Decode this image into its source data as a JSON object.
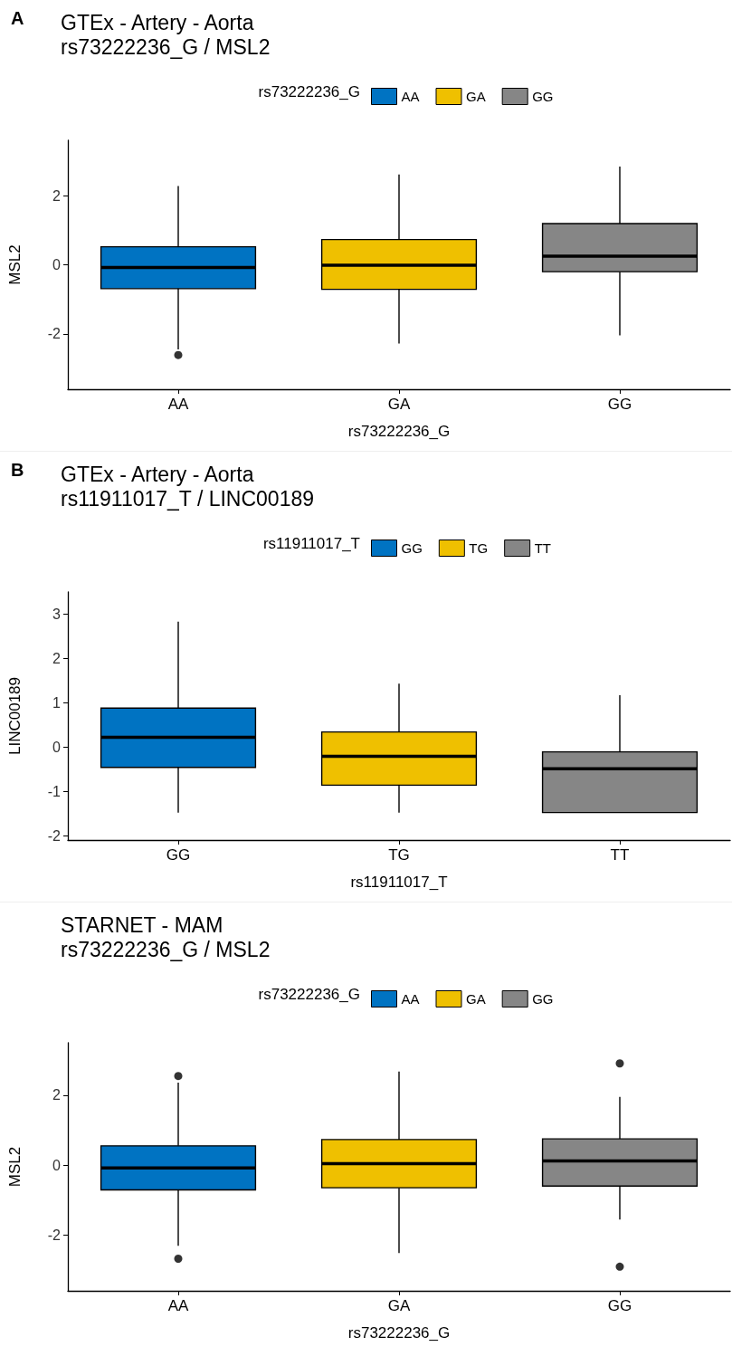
{
  "chart_data": [
    {
      "type": "box",
      "title": "GTEx - Artery - Aorta",
      "subtitle": "rs73222236_G / MSL2",
      "annotations": [
        "A"
      ],
      "xlabel": "rs73222236_G",
      "ylabel": "MSL2",
      "legend_title": "rs73222236_G",
      "legend": "top",
      "categories": [
        "AA",
        "GA",
        "GG"
      ],
      "ylim": [
        -3.6,
        3.6
      ],
      "yticks": [
        -2,
        0,
        2
      ],
      "series": [
        {
          "name": "AA",
          "color": "#0073c2",
          "boxes": [
            {
              "low": -2.45,
              "q1": -0.69,
              "median": -0.08,
              "q3": 0.52,
              "high": 2.28,
              "outliers": [
                -2.61
              ]
            },
            null,
            null
          ]
        },
        {
          "name": "GA",
          "color": "#efc000",
          "boxes": [
            null,
            {
              "low": -2.28,
              "q1": -0.71,
              "median": -0.01,
              "q3": 0.73,
              "high": 2.61
            },
            null
          ]
        },
        {
          "name": "GG",
          "color": "#868686",
          "boxes": [
            null,
            null,
            {
              "low": -2.04,
              "q1": -0.2,
              "median": 0.25,
              "q3": 1.19,
              "high": 2.84
            }
          ]
        }
      ]
    },
    {
      "type": "box",
      "title": "GTEx - Artery - Aorta",
      "subtitle": "rs11911017_T / LINC00189",
      "annotations": [
        "B"
      ],
      "xlabel": "rs11911017_T",
      "ylabel": "LINC00189",
      "legend_title": "rs11911017_T",
      "legend": "top",
      "categories": [
        "GG",
        "TG",
        "TT"
      ],
      "ylim": [
        -2.1,
        3.5
      ],
      "yticks": [
        -2,
        -1,
        0,
        1,
        2,
        3
      ],
      "series": [
        {
          "name": "GG",
          "color": "#0073c2",
          "boxes": [
            {
              "low": -1.48,
              "q1": -0.46,
              "median": 0.22,
              "q3": 0.88,
              "high": 2.83
            },
            null,
            null
          ]
        },
        {
          "name": "TG",
          "color": "#efc000",
          "boxes": [
            null,
            {
              "low": -1.48,
              "q1": -0.86,
              "median": -0.21,
              "q3": 0.34,
              "high": 1.43
            },
            null
          ]
        },
        {
          "name": "TT",
          "color": "#868686",
          "boxes": [
            null,
            null,
            {
              "low": -1.48,
              "q1": -1.48,
              "median": -0.49,
              "q3": -0.11,
              "high": 1.17
            }
          ]
        }
      ]
    },
    {
      "type": "box",
      "title": "STARNET - MAM",
      "subtitle": "rs73222236_G / MSL2",
      "xlabel": "rs73222236_G",
      "ylabel": "MSL2",
      "legend_title": "rs73222236_G",
      "legend": "top",
      "categories": [
        "AA",
        "GA",
        "GG"
      ],
      "ylim": [
        -3.6,
        3.5
      ],
      "yticks": [
        -2,
        0,
        2
      ],
      "series": [
        {
          "name": "AA",
          "color": "#0073c2",
          "boxes": [
            {
              "low": -2.31,
              "q1": -0.71,
              "median": -0.08,
              "q3": 0.55,
              "high": 2.36,
              "outliers": [
                2.55,
                -2.68
              ]
            },
            null,
            null
          ]
        },
        {
          "name": "GA",
          "color": "#efc000",
          "boxes": [
            null,
            {
              "low": -2.52,
              "q1": -0.65,
              "median": 0.04,
              "q3": 0.73,
              "high": 2.68
            },
            null
          ]
        },
        {
          "name": "GG",
          "color": "#868686",
          "boxes": [
            null,
            null,
            {
              "low": -1.56,
              "q1": -0.6,
              "median": 0.12,
              "q3": 0.75,
              "high": 1.95,
              "outliers": [
                2.91,
                -2.91
              ]
            }
          ]
        }
      ]
    }
  ]
}
